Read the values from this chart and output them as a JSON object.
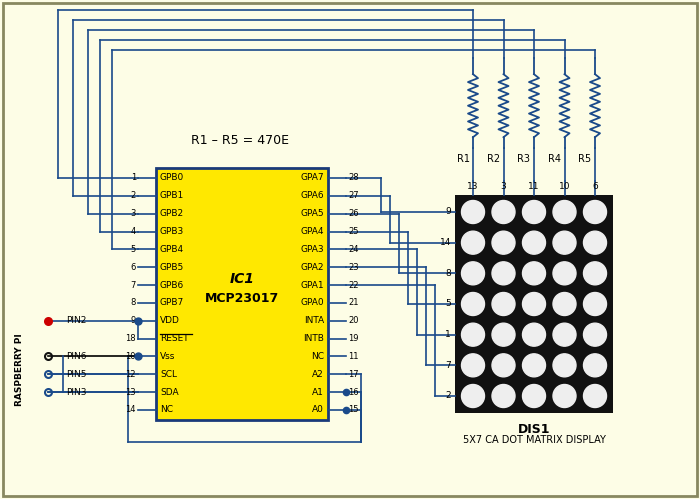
{
  "bg_color": "#FDFDE6",
  "wire_color": "#1a4a8a",
  "ic_fill": "#FFE800",
  "ic_border": "#1a3a7a",
  "dot_matrix_fill": "#111111",
  "dot_color": "#EEEEEE",
  "r_label": "R1 – R5 = 470E",
  "ic_name": "IC1",
  "ic_model": "MCP23017",
  "dis_label": "DIS1",
  "dis_sub": "5X7 CA DOT MATRIX DISPLAY",
  "rpi_label": "RASPBERRY PI",
  "left_pins": [
    "GPB0",
    "GPB1",
    "GPB2",
    "GPB3",
    "GPB4",
    "GPB5",
    "GPB6",
    "GPB7",
    "VDD",
    "RESET",
    "Vss",
    "SCL",
    "SDA",
    "NC"
  ],
  "left_nums": [
    "1",
    "2",
    "3",
    "4",
    "5",
    "6",
    "7",
    "8",
    "9",
    "18",
    "10",
    "12",
    "13",
    "14"
  ],
  "right_pins": [
    "GPA7",
    "GPA6",
    "GPA5",
    "GPA4",
    "GPA3",
    "GPA2",
    "GPA1",
    "GPA0",
    "INTA",
    "INTB",
    "NC",
    "A2",
    "A1",
    "A0"
  ],
  "right_nums": [
    "28",
    "27",
    "26",
    "25",
    "24",
    "23",
    "22",
    "21",
    "20",
    "19",
    "11",
    "17",
    "16",
    "15"
  ],
  "resistor_labels": [
    "R1",
    "R2",
    "R3",
    "R4",
    "R5"
  ],
  "display_col_nums": [
    "13",
    "3",
    "11",
    "10",
    "6"
  ],
  "display_row_nums": [
    "9",
    "14",
    "8",
    "5",
    "1",
    "7",
    "2"
  ],
  "rpi_pins": [
    "PIN2",
    "PIN6",
    "PIN5",
    "PIN3"
  ],
  "rpi_pin_colors": [
    "#cc0000",
    "#111111",
    "#1a4a8a",
    "#1a4a8a"
  ]
}
